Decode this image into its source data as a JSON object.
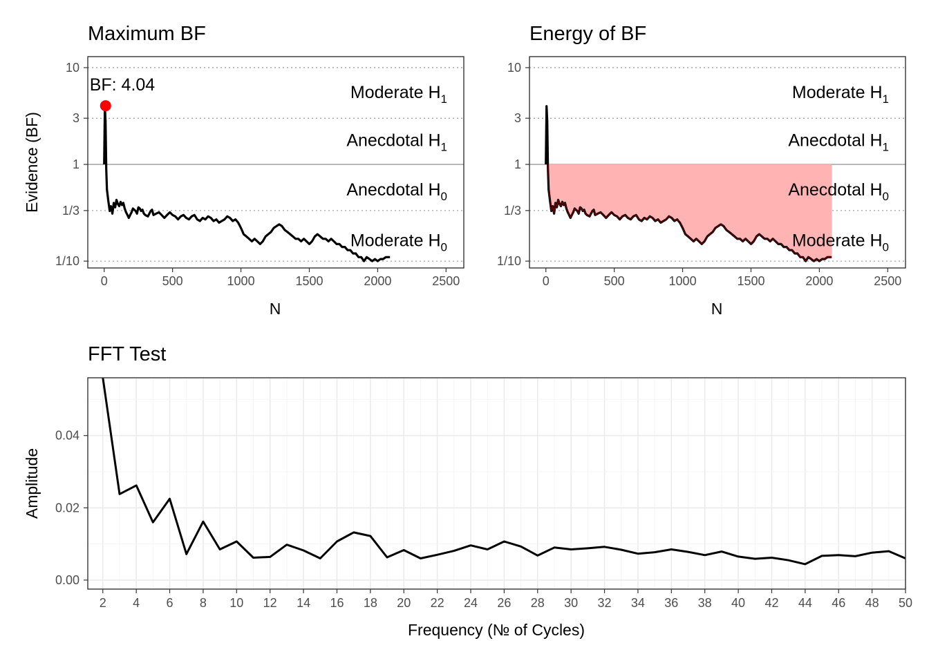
{
  "chart_data": [
    {
      "type": "line",
      "title": "Maximum BF",
      "xlabel": "N",
      "ylabel": "Evidence (BF)",
      "scale_y": "log",
      "xlim": [
        -120,
        2630
      ],
      "ylim": [
        0.085,
        13
      ],
      "x_ticks": [
        "0",
        "500",
        "1000",
        "1500",
        "2000",
        "2500"
      ],
      "x_tick_values": [
        0,
        500,
        1000,
        1500,
        2000,
        2500
      ],
      "y_ticks": [
        "10",
        "3",
        "1",
        "1/3",
        "1/10"
      ],
      "y_tick_values": [
        10,
        3,
        1,
        0.3333,
        0.1
      ],
      "regions": [
        {
          "label": "Moderate H",
          "sub": "1",
          "y": 5.6
        },
        {
          "label": "Anecdotal H",
          "sub": "1",
          "y": 1.8
        },
        {
          "label": "Anecdotal H",
          "sub": "0",
          "y": 0.555
        },
        {
          "label": "Moderate H",
          "sub": "0",
          "y": 0.165
        }
      ],
      "max_point": {
        "x": 10,
        "y": 4.04,
        "label": "BF: 4.04",
        "color": "#ff0000"
      },
      "series": [
        {
          "values": [
            [
              0,
              1.0
            ],
            [
              5,
              4.0
            ],
            [
              10,
              2.8
            ],
            [
              15,
              0.9
            ],
            [
              20,
              0.55
            ],
            [
              30,
              0.42
            ],
            [
              40,
              0.33
            ],
            [
              50,
              0.37
            ],
            [
              60,
              0.31
            ],
            [
              70,
              0.4
            ],
            [
              80,
              0.36
            ],
            [
              90,
              0.43
            ],
            [
              100,
              0.39
            ],
            [
              110,
              0.37
            ],
            [
              120,
              0.41
            ],
            [
              130,
              0.38
            ],
            [
              140,
              0.4
            ],
            [
              150,
              0.35
            ],
            [
              160,
              0.32
            ],
            [
              170,
              0.3
            ],
            [
              180,
              0.28
            ],
            [
              190,
              0.3
            ],
            [
              200,
              0.32
            ],
            [
              210,
              0.35
            ],
            [
              220,
              0.34
            ],
            [
              230,
              0.33
            ],
            [
              240,
              0.31
            ],
            [
              250,
              0.36
            ],
            [
              260,
              0.35
            ],
            [
              270,
              0.33
            ],
            [
              280,
              0.34
            ],
            [
              290,
              0.31
            ],
            [
              300,
              0.3
            ],
            [
              320,
              0.29
            ],
            [
              340,
              0.33
            ],
            [
              350,
              0.34
            ],
            [
              360,
              0.3
            ],
            [
              380,
              0.31
            ],
            [
              400,
              0.32
            ],
            [
              420,
              0.3
            ],
            [
              440,
              0.28
            ],
            [
              460,
              0.3
            ],
            [
              480,
              0.32
            ],
            [
              500,
              0.3
            ],
            [
              520,
              0.29
            ],
            [
              540,
              0.27
            ],
            [
              560,
              0.29
            ],
            [
              580,
              0.3
            ],
            [
              600,
              0.28
            ],
            [
              620,
              0.27
            ],
            [
              640,
              0.29
            ],
            [
              660,
              0.3
            ],
            [
              680,
              0.27
            ],
            [
              700,
              0.26
            ],
            [
              720,
              0.28
            ],
            [
              740,
              0.27
            ],
            [
              760,
              0.29
            ],
            [
              780,
              0.28
            ],
            [
              800,
              0.26
            ],
            [
              820,
              0.27
            ],
            [
              840,
              0.25
            ],
            [
              860,
              0.26
            ],
            [
              880,
              0.27
            ],
            [
              900,
              0.29
            ],
            [
              920,
              0.28
            ],
            [
              940,
              0.26
            ],
            [
              960,
              0.27
            ],
            [
              980,
              0.25
            ],
            [
              1000,
              0.22
            ],
            [
              1020,
              0.19
            ],
            [
              1040,
              0.18
            ],
            [
              1060,
              0.17
            ],
            [
              1080,
              0.16
            ],
            [
              1100,
              0.17
            ],
            [
              1120,
              0.16
            ],
            [
              1140,
              0.15
            ],
            [
              1160,
              0.16
            ],
            [
              1180,
              0.18
            ],
            [
              1200,
              0.19
            ],
            [
              1220,
              0.2
            ],
            [
              1240,
              0.22
            ],
            [
              1260,
              0.23
            ],
            [
              1280,
              0.24
            ],
            [
              1300,
              0.23
            ],
            [
              1320,
              0.21
            ],
            [
              1340,
              0.2
            ],
            [
              1360,
              0.19
            ],
            [
              1380,
              0.18
            ],
            [
              1400,
              0.17
            ],
            [
              1420,
              0.17
            ],
            [
              1440,
              0.16
            ],
            [
              1460,
              0.17
            ],
            [
              1480,
              0.16
            ],
            [
              1500,
              0.15
            ],
            [
              1520,
              0.16
            ],
            [
              1540,
              0.18
            ],
            [
              1560,
              0.19
            ],
            [
              1580,
              0.18
            ],
            [
              1600,
              0.17
            ],
            [
              1620,
              0.17
            ],
            [
              1640,
              0.16
            ],
            [
              1660,
              0.17
            ],
            [
              1680,
              0.16
            ],
            [
              1700,
              0.15
            ],
            [
              1720,
              0.15
            ],
            [
              1740,
              0.14
            ],
            [
              1760,
              0.14
            ],
            [
              1780,
              0.13
            ],
            [
              1800,
              0.13
            ],
            [
              1820,
              0.12
            ],
            [
              1840,
              0.12
            ],
            [
              1860,
              0.11
            ],
            [
              1880,
              0.11
            ],
            [
              1900,
              0.1
            ],
            [
              1920,
              0.11
            ],
            [
              1940,
              0.105
            ],
            [
              1960,
              0.1
            ],
            [
              1980,
              0.105
            ],
            [
              2000,
              0.1
            ],
            [
              2020,
              0.105
            ],
            [
              2040,
              0.105
            ],
            [
              2060,
              0.11
            ],
            [
              2080,
              0.11
            ],
            [
              2090,
              0.11
            ]
          ]
        }
      ]
    },
    {
      "type": "area",
      "title": "Energy of BF",
      "xlabel": "N",
      "scale_y": "log",
      "xlim": [
        -120,
        2630
      ],
      "ylim": [
        0.085,
        13
      ],
      "x_ticks": [
        "0",
        "500",
        "1000",
        "1500",
        "2000",
        "2500"
      ],
      "x_tick_values": [
        0,
        500,
        1000,
        1500,
        2000,
        2500
      ],
      "y_ticks": [
        "10",
        "3",
        "1",
        "1/3",
        "1/10"
      ],
      "y_tick_values": [
        10,
        3,
        1,
        0.3333,
        0.1
      ],
      "fill_color": "#ffb3b3",
      "regions": [
        {
          "label": "Moderate H",
          "sub": "1",
          "y": 5.6
        },
        {
          "label": "Anecdotal H",
          "sub": "1",
          "y": 1.8
        },
        {
          "label": "Anecdotal H",
          "sub": "0",
          "y": 0.555
        },
        {
          "label": "Moderate H",
          "sub": "0",
          "y": 0.165
        }
      ]
    },
    {
      "type": "line",
      "title": "FFT Test",
      "xlabel": "Frequency (№ of Cycles)",
      "ylabel": "Amplitude",
      "xlim": [
        1.1,
        50
      ],
      "ylim": [
        -0.0025,
        0.056
      ],
      "x_ticks": [
        "2",
        "4",
        "6",
        "8",
        "10",
        "12",
        "14",
        "16",
        "18",
        "20",
        "22",
        "24",
        "26",
        "28",
        "30",
        "32",
        "34",
        "36",
        "38",
        "40",
        "42",
        "44",
        "46",
        "48",
        "50"
      ],
      "x_tick_values": [
        2,
        4,
        6,
        8,
        10,
        12,
        14,
        16,
        18,
        20,
        22,
        24,
        26,
        28,
        30,
        32,
        34,
        36,
        38,
        40,
        42,
        44,
        46,
        48,
        50
      ],
      "y_ticks": [
        "0.00",
        "0.02",
        "0.04"
      ],
      "y_tick_values": [
        0,
        0.02,
        0.04
      ],
      "x": [
        2,
        3,
        4,
        5,
        6,
        7,
        8,
        9,
        10,
        11,
        12,
        13,
        14,
        15,
        16,
        17,
        18,
        19,
        20,
        21,
        22,
        23,
        24,
        25,
        26,
        27,
        28,
        29,
        30,
        31,
        32,
        33,
        34,
        35,
        36,
        37,
        38,
        39,
        40,
        41,
        42,
        43,
        44,
        45,
        46,
        47,
        48,
        49,
        50
      ],
      "series": [
        {
          "values": [
            0.056,
            0.0238,
            0.0262,
            0.016,
            0.0225,
            0.0072,
            0.0162,
            0.0085,
            0.0107,
            0.0062,
            0.0064,
            0.0098,
            0.0082,
            0.006,
            0.0107,
            0.0132,
            0.0122,
            0.0063,
            0.0083,
            0.006,
            0.007,
            0.0081,
            0.0096,
            0.0085,
            0.0107,
            0.0093,
            0.0068,
            0.009,
            0.0085,
            0.0088,
            0.0092,
            0.0084,
            0.0073,
            0.0077,
            0.0085,
            0.0078,
            0.0069,
            0.0079,
            0.0065,
            0.0059,
            0.0062,
            0.0055,
            0.0044,
            0.0067,
            0.0069,
            0.0066,
            0.0076,
            0.008,
            0.006
          ]
        }
      ]
    }
  ]
}
